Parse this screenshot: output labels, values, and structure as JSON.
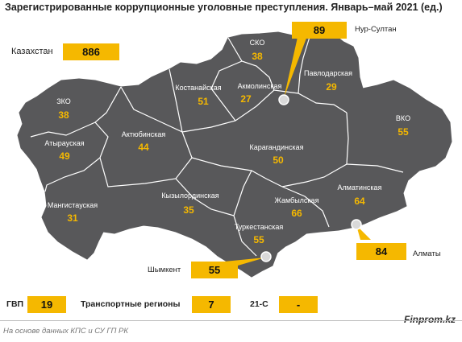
{
  "title": "Зарегистрированные коррупционные уголовные преступления. Январь–май 2021 (ед.)",
  "country": {
    "name": "Казахстан",
    "value": "886"
  },
  "regions": [
    {
      "key": "sko",
      "name": "СКО",
      "value": "38"
    },
    {
      "key": "kostanay",
      "name": "Костанайская",
      "value": "51"
    },
    {
      "key": "akmola",
      "name": "Акмолинская",
      "value": "27"
    },
    {
      "key": "pavlodar",
      "name": "Павлодарская",
      "value": "29"
    },
    {
      "key": "zko",
      "name": "ЗКО",
      "value": "38"
    },
    {
      "key": "atyrau",
      "name": "Атырауская",
      "value": "49"
    },
    {
      "key": "aktobe",
      "name": "Актюбинская",
      "value": "44"
    },
    {
      "key": "vko",
      "name": "ВКО",
      "value": "55"
    },
    {
      "key": "karaganda",
      "name": "Карагандинская",
      "value": "50"
    },
    {
      "key": "mangistau",
      "name": "Мангистауская",
      "value": "31"
    },
    {
      "key": "kyzylorda",
      "name": "Кызылординская",
      "value": "35"
    },
    {
      "key": "zhambyl",
      "name": "Жамбылская",
      "value": "66"
    },
    {
      "key": "almaty_region",
      "name": "Алматинская",
      "value": "64"
    },
    {
      "key": "turkestan",
      "name": "Туркестанская",
      "value": "55"
    }
  ],
  "cities": [
    {
      "key": "nur_sultan",
      "name": "Нур-Султан",
      "value": "89"
    },
    {
      "key": "almaty",
      "name": "Алматы",
      "value": "84"
    },
    {
      "key": "shymkent",
      "name": "Шымкент",
      "value": "55"
    }
  ],
  "legend": [
    {
      "label": "ГВП",
      "value": "19"
    },
    {
      "label": "Транспортные регионы",
      "value": "7"
    },
    {
      "label": "21-С",
      "value": "-"
    }
  ],
  "source": "На основе данных КПС и СУ ГП РК",
  "brand": "Finprom.kz",
  "colors": {
    "map_fill": "#58585a",
    "border": "#ffffff",
    "accent": "#f5b800"
  }
}
